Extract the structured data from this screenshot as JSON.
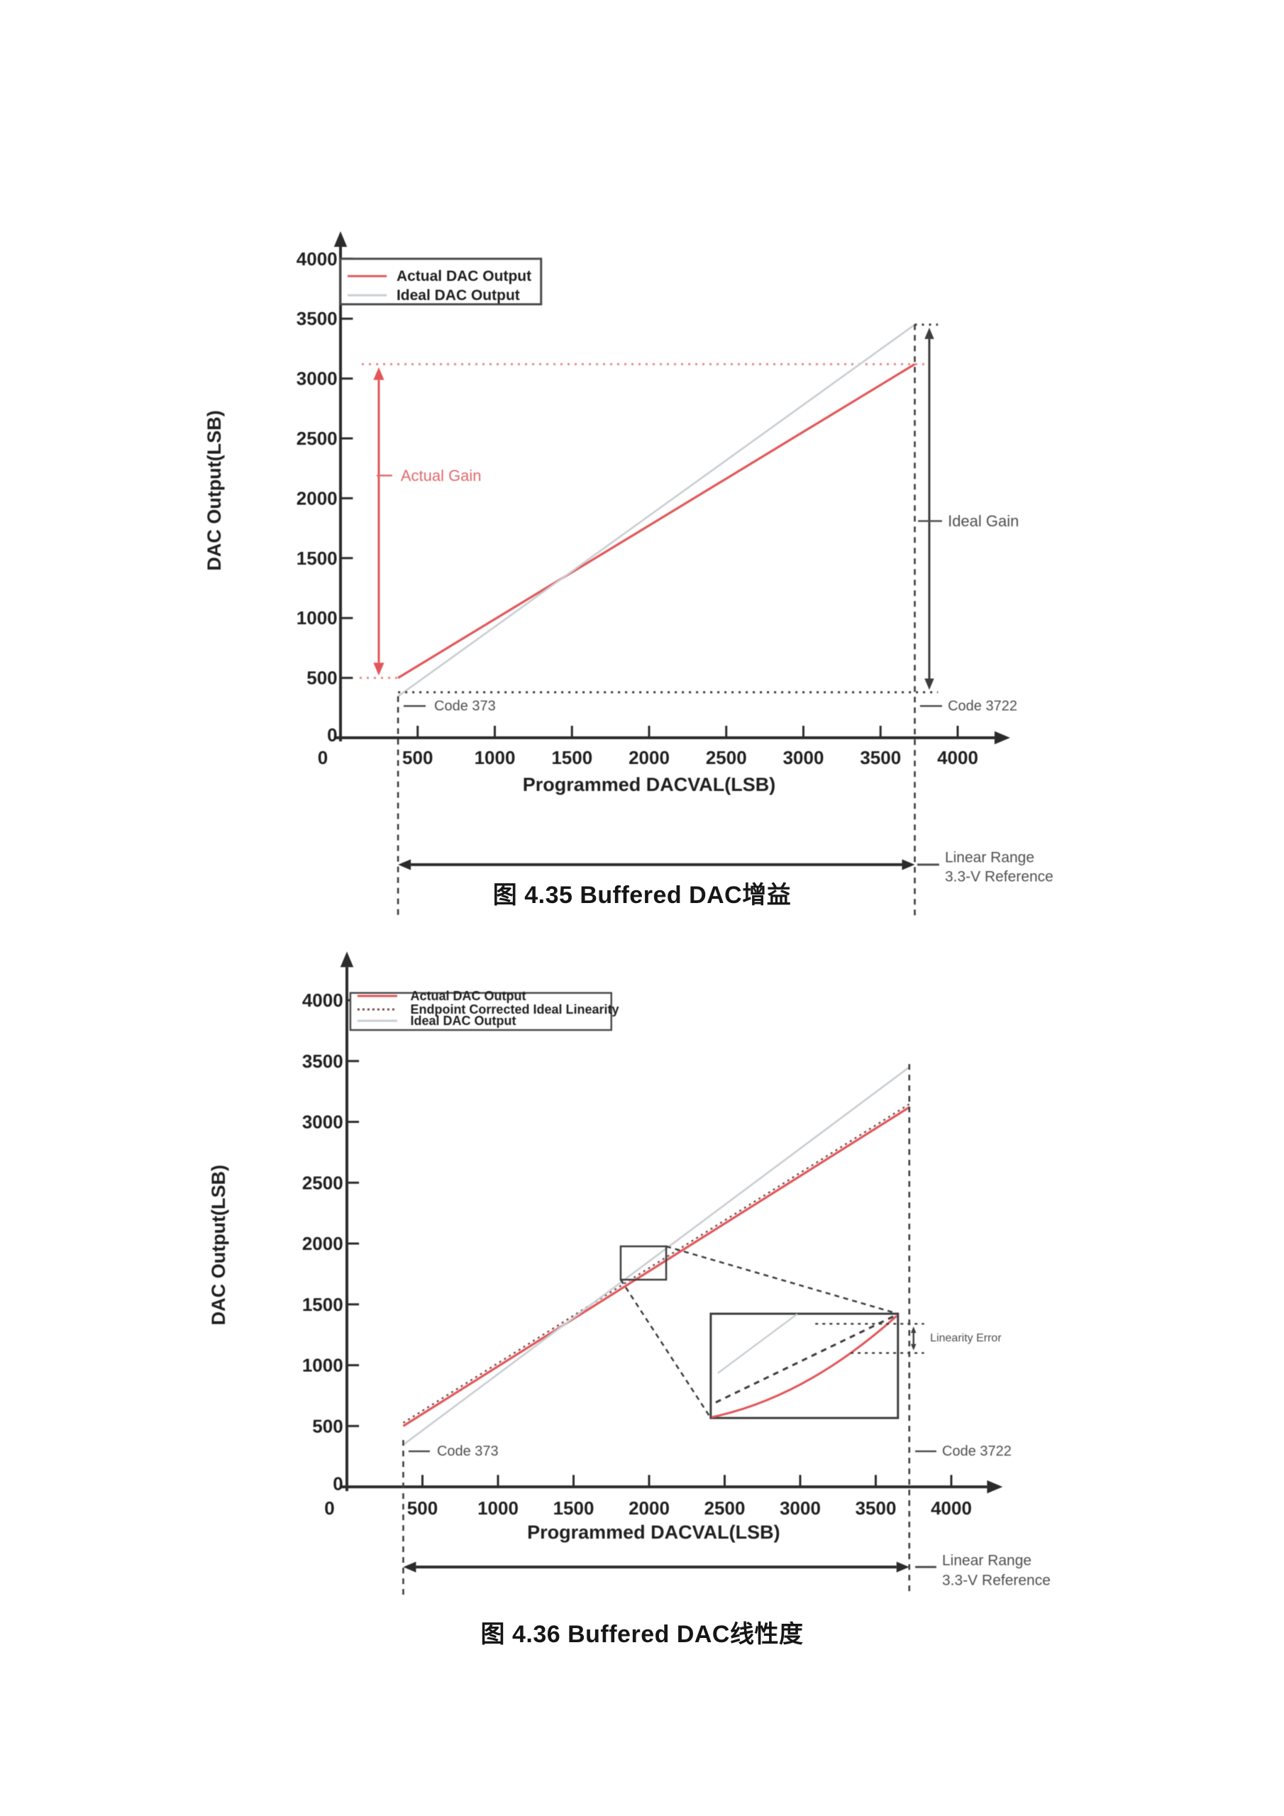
{
  "figures": [
    {
      "caption": "图 4.35 Buffered DAC增益"
    },
    {
      "caption": "图 4.36 Buffered DAC线性度"
    }
  ],
  "colors": {
    "ax": "#2b2b2b",
    "tk": "#1f1f1f",
    "red": "#e25659",
    "gray": "#c9ced2",
    "reddot": "#e08a8a",
    "redlab": "#e0696c",
    "blk": "#3d3d3d",
    "lab": "#4f4f4f",
    "leg": "#4a4a4a",
    "ec": "#7c4b4b",
    "wh": "#ffffff"
  },
  "chart_data": [
    {
      "type": "line",
      "title": "Buffered DAC gain",
      "xlabel": "Programmed DACVAL(LSB)",
      "ylabel": "DAC Output(LSB)",
      "xlim": [
        0,
        4300
      ],
      "ylim": [
        0,
        4300
      ],
      "xticks": [
        500,
        1000,
        1500,
        2000,
        2500,
        3000,
        3500,
        4000
      ],
      "yticks": [
        500,
        1000,
        1500,
        2000,
        2500,
        3000,
        3500,
        4000
      ],
      "legend_position": "top-left",
      "grid": false,
      "notable_values": {
        "linear_range_codes": [
          373,
          3722
        ],
        "actual_output_at_code_373": 500,
        "actual_output_at_code_3722": 3120,
        "ideal_output_at_code_3722": 3450
      },
      "layout": {
        "ox": 480,
        "oy": 1040,
        "sx": 0.2175,
        "sy": 0.1688
      },
      "series": [
        {
          "name": "Actual DAC Output",
          "color": "red",
          "w": 3.2,
          "points": [
            [
              373,
              500
            ],
            [
              3722,
              3120
            ]
          ]
        },
        {
          "name": "Ideal DAC Output",
          "color": "gray",
          "w": 2.6,
          "points": [
            [
              373,
              346
            ],
            [
              3722,
              3450
            ]
          ]
        }
      ],
      "elements": [
        {
          "t": "arrow1",
          "p": [
            0,
            -30,
            0,
            4230
          ],
          "c": "ax",
          "w": 4,
          "hl": 22
        },
        {
          "t": "arrow1",
          "p": [
            -40,
            0,
            4340,
            0
          ],
          "c": "ax",
          "w": 4,
          "hl": 22
        },
        {
          "t": "tx",
          "vals": [
            500,
            1000,
            1500,
            2000,
            2500,
            3000,
            3500,
            4000
          ],
          "len": 100,
          "w": 3
        },
        {
          "t": "ty",
          "vals": [
            500,
            1000,
            1500,
            2000,
            2500,
            3000,
            3500,
            4000
          ],
          "len": 80,
          "w": 3
        },
        {
          "t": "lx",
          "vals": [
            500,
            1000,
            1500,
            2000,
            2500,
            3000,
            3500,
            4000
          ],
          "y": -166,
          "fs": 26
        },
        {
          "t": "ly",
          "vals": [
            500,
            1000,
            1500,
            2000,
            2500,
            3000,
            3500,
            4000
          ],
          "x": -20,
          "fs": 26
        },
        {
          "t": "text",
          "x": -115,
          "y": -166,
          "s": "0",
          "fs": 26,
          "c": "tk",
          "fw": "bold",
          "anc": "middle"
        },
        {
          "t": "text",
          "x": -20,
          "y": 25,
          "s": "0",
          "fs": 26,
          "c": "tk",
          "fw": "bold",
          "anc": "end"
        },
        {
          "t": "text",
          "x": 2000,
          "y": -390,
          "s": "Programmed DACVAL(LSB)",
          "fs": 27,
          "c": "tk",
          "fw": "bold",
          "anc": "middle"
        },
        {
          "t": "text",
          "x": -818,
          "y": 2065,
          "s": "DAC Output(LSB)",
          "fs": 27,
          "c": "tk",
          "fw": "bold",
          "anc": "middle",
          "rot": -90
        },
        {
          "t": "line",
          "p": [
            138,
            3120,
            3802,
            3120
          ],
          "c": "reddot",
          "w": 3,
          "dash": "3,7"
        },
        {
          "t": "line",
          "p": [
            124,
            500,
            373,
            500
          ],
          "c": "reddot",
          "w": 3,
          "dash": "3,7"
        },
        {
          "t": "series"
        },
        {
          "t": "arrow2",
          "p": [
            248,
            520,
            248,
            3095
          ],
          "c": "red",
          "w": 3,
          "hl": 18
        },
        {
          "t": "line",
          "p": [
            235,
            2190,
            335,
            2190
          ],
          "c": "redlab",
          "w": 2.5
        },
        {
          "t": "text",
          "x": 390,
          "y": 2190,
          "s": "Actual Gain",
          "fs": 22,
          "c": "redlab"
        },
        {
          "t": "line",
          "p": [
            373,
            380,
            3872,
            380
          ],
          "c": "blk",
          "w": 3,
          "dash": "3,7"
        },
        {
          "t": "line",
          "p": [
            3722,
            3450,
            3872,
            3450
          ],
          "c": "blk",
          "w": 3,
          "dash": "3,7"
        },
        {
          "t": "arrow2",
          "p": [
            3816,
            400,
            3816,
            3425
          ],
          "c": "blk",
          "w": 3,
          "hl": 16
        },
        {
          "t": "line",
          "p": [
            3743,
            1810,
            3899,
            1810
          ],
          "c": "lab",
          "w": 2.5
        },
        {
          "t": "text",
          "x": 3936,
          "y": 1810,
          "s": "Ideal Gain",
          "fs": 22,
          "c": "lab"
        },
        {
          "t": "line",
          "p": [
            373,
            346,
            373,
            -1500
          ],
          "c": "blk",
          "w": 2.6,
          "dash": "8,7"
        },
        {
          "t": "line",
          "p": [
            3722,
            3452,
            3722,
            -1500
          ],
          "c": "blk",
          "w": 2.6,
          "dash": "8,7"
        },
        {
          "t": "line",
          "p": [
            409,
            265,
            552,
            265
          ],
          "c": "lab",
          "w": 2.5
        },
        {
          "t": "text",
          "x": 607,
          "y": 265,
          "s": "Code 373",
          "fs": 20,
          "c": "lab"
        },
        {
          "t": "line",
          "p": [
            3756,
            265,
            3899,
            265
          ],
          "c": "lab",
          "w": 2.5
        },
        {
          "t": "text",
          "x": 3936,
          "y": 265,
          "s": "Code 3722",
          "fs": 20,
          "c": "lab"
        },
        {
          "t": "arrow2",
          "p": [
            373,
            -1060,
            3722,
            -1060
          ],
          "c": "ax",
          "w": 4,
          "hl": 18
        },
        {
          "t": "line",
          "p": [
            3738,
            -1060,
            3880,
            -1060
          ],
          "c": "lab",
          "w": 3
        },
        {
          "t": "text",
          "x": 3917,
          "y": -1000,
          "s": "Linear Range",
          "fs": 21,
          "c": "lab"
        },
        {
          "t": "text",
          "x": 3917,
          "y": -1160,
          "s": "3.3-V Reference",
          "fs": 21,
          "c": "lab"
        },
        {
          "t": "legend",
          "x1": 0,
          "y1": 4000,
          "x2": 1300,
          "y2": 3620,
          "bw": 3,
          "sx1": 46,
          "sx2": 299,
          "tx": 363,
          "fs": 21,
          "rows": [
            {
              "y": 3855,
              "c": "red",
              "label": "Actual DAC Output"
            },
            {
              "y": 3695,
              "c": "gray",
              "label": "Ideal DAC Output"
            }
          ]
        }
      ]
    },
    {
      "type": "line",
      "title": "Buffered DAC linearity",
      "xlabel": "Programmed DACVAL(LSB)",
      "ylabel": "DAC Output(LSB)",
      "xlim": [
        0,
        4300
      ],
      "ylim": [
        0,
        4300
      ],
      "xticks": [
        500,
        1000,
        1500,
        2000,
        2500,
        3000,
        3500,
        4000
      ],
      "yticks": [
        500,
        1000,
        1500,
        2000,
        2500,
        3000,
        3500,
        4000
      ],
      "legend_position": "top-left",
      "grid": false,
      "notable_values": {
        "linear_range_codes": [
          373,
          3722
        ],
        "actual_output_at_code_373": 500,
        "actual_output_at_code_3722": 3120,
        "ideal_output_at_code_3722": 3450,
        "zoom_region_x": [
          1812,
          2113
        ],
        "zoom_region_y": [
          1703,
          1977
        ]
      },
      "layout": {
        "ox": 489,
        "oy": 2096,
        "sx": 0.213,
        "sy": 0.1715
      },
      "series": [
        {
          "name": "Actual DAC Output",
          "color": "red",
          "w": 3.2,
          "points": [
            [
              373,
              500
            ],
            [
              3722,
              3120
            ]
          ]
        },
        {
          "name": "Endpoint Corrected Ideal Linearity",
          "color": "ec",
          "w": 2.4,
          "dash": "3,5",
          "points": [
            [
              373,
              526
            ],
            [
              3722,
              3146
            ]
          ]
        },
        {
          "name": "Ideal DAC Output",
          "color": "gray",
          "w": 2.6,
          "points": [
            [
              373,
              346
            ],
            [
              3722,
              3450
            ]
          ]
        }
      ],
      "elements": [
        {
          "t": "arrow1",
          "p": [
            0,
            -35,
            0,
            4400
          ],
          "c": "ax",
          "w": 4,
          "hl": 22
        },
        {
          "t": "arrow1",
          "p": [
            -45,
            0,
            4340,
            0
          ],
          "c": "ax",
          "w": 4,
          "hl": 22
        },
        {
          "t": "tx",
          "vals": [
            500,
            1000,
            1500,
            2000,
            2500,
            3000,
            3500,
            4000
          ],
          "len": 98,
          "w": 3
        },
        {
          "t": "ty",
          "vals": [
            500,
            1000,
            1500,
            2000,
            2500,
            3000,
            3500,
            4000
          ],
          "len": 80,
          "w": 3
        },
        {
          "t": "lx",
          "vals": [
            500,
            1000,
            1500,
            2000,
            2500,
            3000,
            3500,
            4000
          ],
          "y": -175,
          "fs": 26
        },
        {
          "t": "ly",
          "vals": [
            500,
            1000,
            1500,
            2000,
            2500,
            3000,
            3500,
            4000
          ],
          "x": -25,
          "fs": 26
        },
        {
          "t": "text",
          "x": -115,
          "y": -175,
          "s": "0",
          "fs": 26,
          "c": "tk",
          "fw": "bold",
          "anc": "middle"
        },
        {
          "t": "text",
          "x": -25,
          "y": 25,
          "s": "0",
          "fs": 26,
          "c": "tk",
          "fw": "bold",
          "anc": "end"
        },
        {
          "t": "text",
          "x": 2030,
          "y": -373,
          "s": "Programmed DACVAL(LSB)",
          "fs": 27,
          "c": "tk",
          "fw": "bold",
          "anc": "middle"
        },
        {
          "t": "text",
          "x": -850,
          "y": 1988,
          "s": "DAC Output(LSB)",
          "fs": 27,
          "c": "tk",
          "fw": "bold",
          "anc": "middle",
          "rot": -90
        },
        {
          "t": "series"
        },
        {
          "t": "rect",
          "p": [
            1812,
            1977,
            2113,
            1703
          ],
          "c": "blk",
          "w": 2.5
        },
        {
          "t": "line",
          "p": [
            2113,
            1977,
            3647,
            1423
          ],
          "c": "blk",
          "w": 2.5,
          "dash": "7,6"
        },
        {
          "t": "line",
          "p": [
            1812,
            1703,
            2408,
            566
          ],
          "c": "blk",
          "w": 2.5,
          "dash": "7,6"
        },
        {
          "t": "rect",
          "p": [
            2408,
            1423,
            3647,
            566
          ],
          "c": "blk",
          "w": 3,
          "fill": "wh"
        },
        {
          "t": "line",
          "p": [
            2455,
            935,
            2980,
            1420
          ],
          "c": "gray",
          "w": 2.4
        },
        {
          "t": "line",
          "p": [
            2441,
            694,
            3634,
            1411
          ],
          "c": "blk",
          "w": 3,
          "dash": "8,7"
        },
        {
          "t": "q",
          "p": [
            2412,
            572,
            3038,
            736,
            3639,
            1405
          ],
          "c": "red",
          "w": 3
        },
        {
          "t": "line",
          "p": [
            3100,
            1340,
            3820,
            1340
          ],
          "c": "blk",
          "w": 2.4,
          "dash": "4,6"
        },
        {
          "t": "line",
          "p": [
            3334,
            1100,
            3820,
            1100
          ],
          "c": "blk",
          "w": 2.4,
          "dash": "4,6"
        },
        {
          "t": "arrow2",
          "p": [
            3750,
            1122,
            3750,
            1318
          ],
          "c": "blk",
          "w": 2.4,
          "hl": 9
        },
        {
          "t": "text",
          "x": 3860,
          "y": 1222,
          "s": "Linearity Error",
          "fs": 16,
          "c": "lab"
        },
        {
          "t": "line",
          "p": [
            373,
            385,
            373,
            -898
          ],
          "c": "blk",
          "w": 2.6,
          "dash": "8,7"
        },
        {
          "t": "line",
          "p": [
            3722,
            3475,
            3722,
            -898
          ],
          "c": "blk",
          "w": 2.6,
          "dash": "8,7"
        },
        {
          "t": "line",
          "p": [
            408,
            292,
            549,
            292
          ],
          "c": "lab",
          "w": 2.5
        },
        {
          "t": "text",
          "x": 596,
          "y": 292,
          "s": "Code 373",
          "fs": 20,
          "c": "lab"
        },
        {
          "t": "line",
          "p": [
            3761,
            292,
            3901,
            292
          ],
          "c": "lab",
          "w": 2.5
        },
        {
          "t": "text",
          "x": 3939,
          "y": 292,
          "s": "Code 3722",
          "fs": 20,
          "c": "lab"
        },
        {
          "t": "arrow2",
          "p": [
            373,
            -659,
            3722,
            -659
          ],
          "c": "ax",
          "w": 4,
          "hl": 18
        },
        {
          "t": "line",
          "p": [
            3761,
            -659,
            3901,
            -659
          ],
          "c": "lab",
          "w": 3
        },
        {
          "t": "text",
          "x": 3939,
          "y": -607,
          "s": "Linear Range",
          "fs": 21,
          "c": "lab"
        },
        {
          "t": "text",
          "x": 3939,
          "y": -770,
          "s": "3.3-V Reference",
          "fs": 21,
          "c": "lab"
        },
        {
          "t": "legend",
          "x1": 23,
          "y1": 4060,
          "x2": 1750,
          "y2": 3755,
          "bw": 2.5,
          "sx1": 70,
          "sx2": 333,
          "tx": 420,
          "fs": 18,
          "rows": [
            {
              "y": 4035,
              "c": "red",
              "label": "Actual DAC Output"
            },
            {
              "y": 3924,
              "c": "ec",
              "dash": "3,4",
              "label": "Endpoint Corrected Ideal Linearity"
            },
            {
              "y": 3831,
              "c": "gray",
              "label": "Ideal DAC Output"
            }
          ]
        }
      ]
    }
  ]
}
